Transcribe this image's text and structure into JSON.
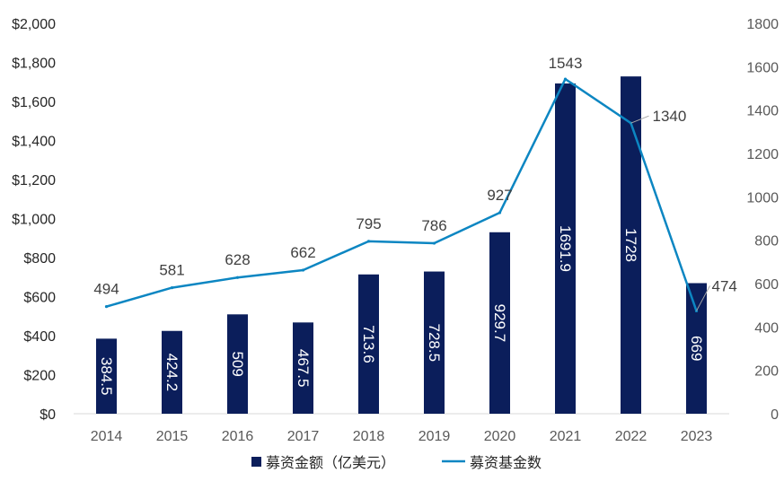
{
  "chart_data": {
    "type": "bar",
    "categories": [
      "2014",
      "2015",
      "2016",
      "2017",
      "2018",
      "2019",
      "2020",
      "2021",
      "2022",
      "2023"
    ],
    "series": [
      {
        "name": "募资金额（亿美元）",
        "chart_type": "bar",
        "axis": "left",
        "color": "#0b1e5b",
        "values": [
          384.5,
          424.2,
          509,
          467.5,
          713.6,
          728.5,
          929.7,
          1691.9,
          1728,
          669
        ],
        "labels": [
          "384.5",
          "424.2",
          "509",
          "467.5",
          "713.6",
          "728.5",
          "929.7",
          "1691.9",
          "1728",
          "669"
        ]
      },
      {
        "name": "募资基金数",
        "chart_type": "line",
        "axis": "right",
        "color": "#0c86c2",
        "values": [
          494,
          581,
          628,
          662,
          795,
          786,
          927,
          1543,
          1340,
          474
        ],
        "labels": [
          "494",
          "581",
          "628",
          "662",
          "795",
          "786",
          "927",
          "1543",
          "1340",
          "474"
        ]
      }
    ],
    "y_left": {
      "range": [
        0,
        2000
      ],
      "ticks": [
        0,
        200,
        400,
        600,
        800,
        1000,
        1200,
        1400,
        1600,
        1800,
        2000
      ],
      "tick_labels": [
        "$0",
        "$200",
        "$400",
        "$600",
        "$800",
        "$1,000",
        "$1,200",
        "$1,400",
        "$1,600",
        "$1,800",
        "$2,000"
      ]
    },
    "y_right": {
      "range": [
        0,
        1800
      ],
      "ticks": [
        0,
        200,
        400,
        600,
        800,
        1000,
        1200,
        1400,
        1600,
        1800
      ],
      "tick_labels": [
        "0",
        "200",
        "400",
        "600",
        "800",
        "1000",
        "1200",
        "1400",
        "1600",
        "1800"
      ]
    },
    "grid": false,
    "legend": {
      "position": "bottom",
      "entries": [
        "募资金额（亿美元）",
        "募资基金数"
      ]
    }
  }
}
